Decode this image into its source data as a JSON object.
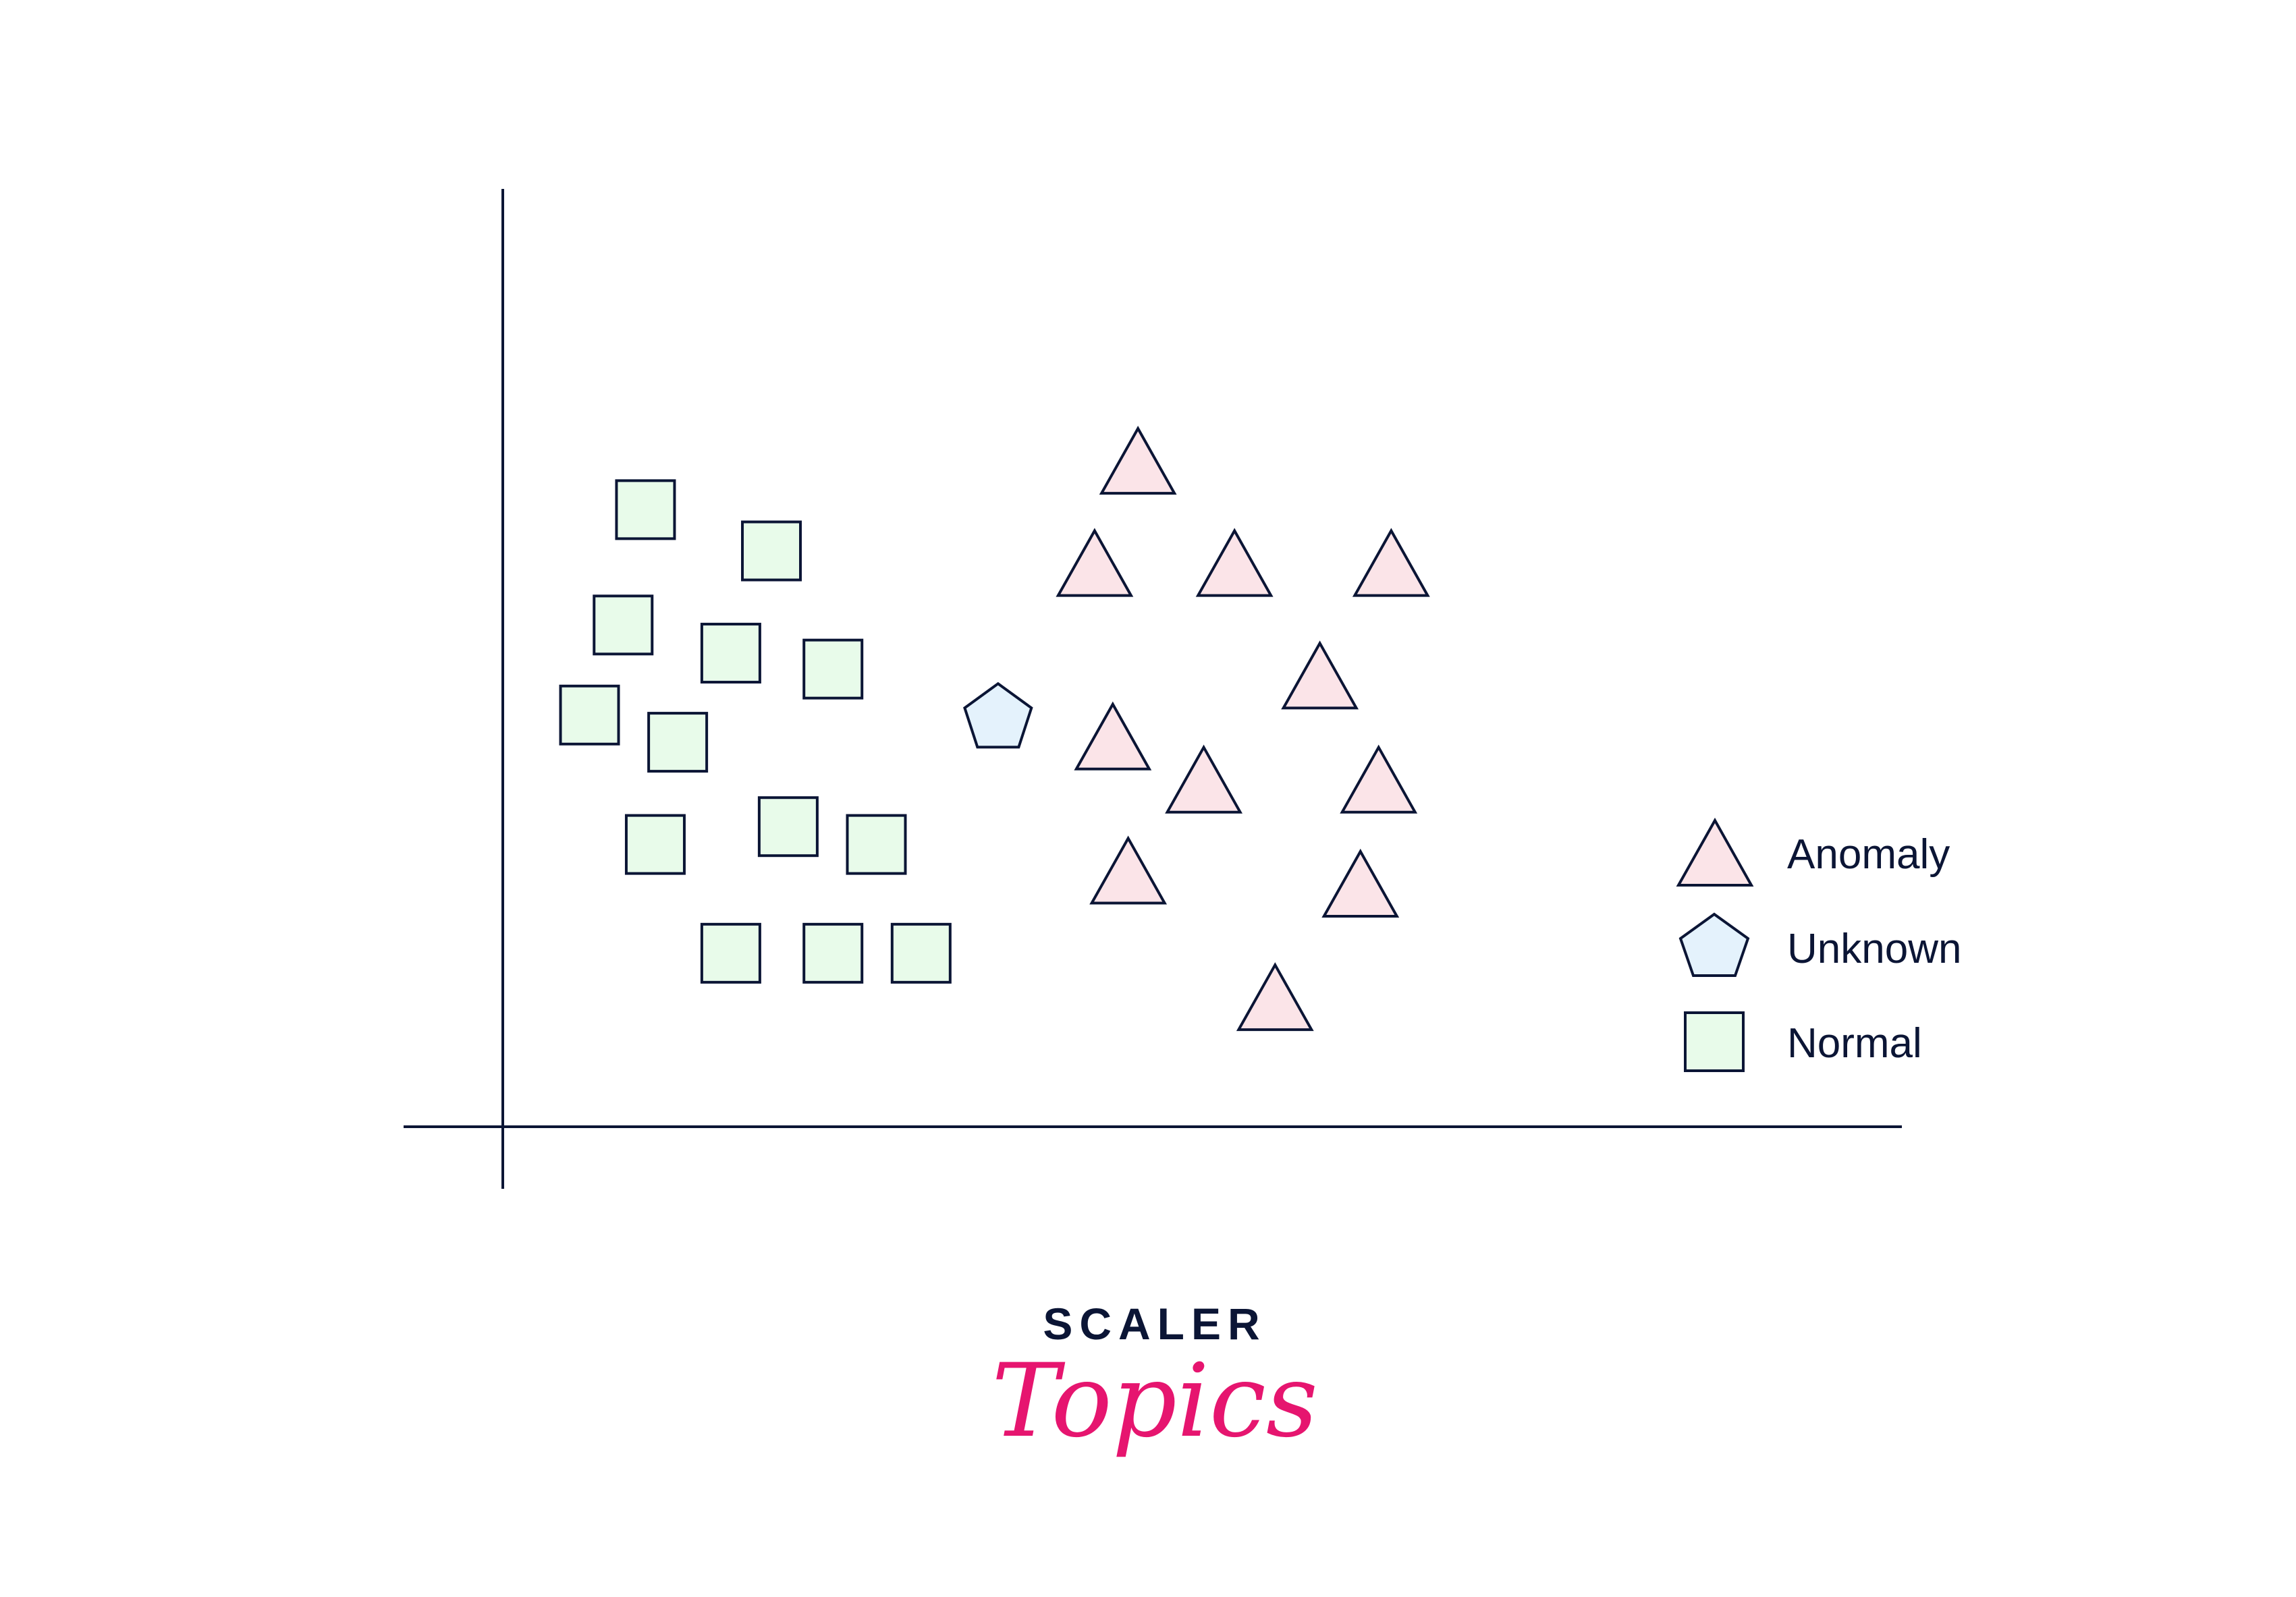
{
  "colors": {
    "stroke": "#0b1535",
    "normal_fill": "#e8fbea",
    "anomaly_fill": "#fbe4e8",
    "unknown_fill": "#e4f2fc",
    "brand_dark": "#0b1535",
    "brand_pink": "#e6156f"
  },
  "chart_data": {
    "type": "scatter",
    "title": "",
    "xlabel": "",
    "ylabel": "",
    "grid": false,
    "xlim": [
      0,
      100
    ],
    "ylim": [
      0,
      100
    ],
    "legend_position": "right",
    "series": [
      {
        "name": "Anomaly",
        "marker": "triangle",
        "points": [
          [
            45.4,
            71.0
          ],
          [
            42.3,
            60.1
          ],
          [
            52.3,
            60.1
          ],
          [
            63.5,
            60.1
          ],
          [
            58.4,
            48.1
          ],
          [
            43.6,
            41.6
          ],
          [
            50.1,
            37.0
          ],
          [
            62.6,
            37.0
          ],
          [
            44.7,
            27.3
          ],
          [
            61.3,
            25.9
          ],
          [
            55.2,
            13.8
          ]
        ]
      },
      {
        "name": "Unknown",
        "marker": "pentagon",
        "points": [
          [
            35.4,
            43.5
          ]
        ]
      },
      {
        "name": "Normal",
        "marker": "square",
        "points": [
          [
            10.2,
            65.8
          ],
          [
            19.2,
            61.4
          ],
          [
            8.6,
            53.5
          ],
          [
            16.3,
            50.5
          ],
          [
            23.6,
            48.8
          ],
          [
            6.2,
            43.9
          ],
          [
            12.5,
            41.0
          ],
          [
            20.4,
            32.0
          ],
          [
            10.9,
            30.1
          ],
          [
            26.7,
            30.1
          ],
          [
            16.3,
            18.5
          ],
          [
            23.6,
            18.5
          ],
          [
            29.9,
            18.5
          ]
        ]
      }
    ]
  },
  "legend": {
    "anomaly_label": "Anomaly",
    "unknown_label": "Unknown",
    "normal_label": "Normal"
  },
  "logo": {
    "top_text": "SCALER",
    "script_text": "Topics"
  }
}
